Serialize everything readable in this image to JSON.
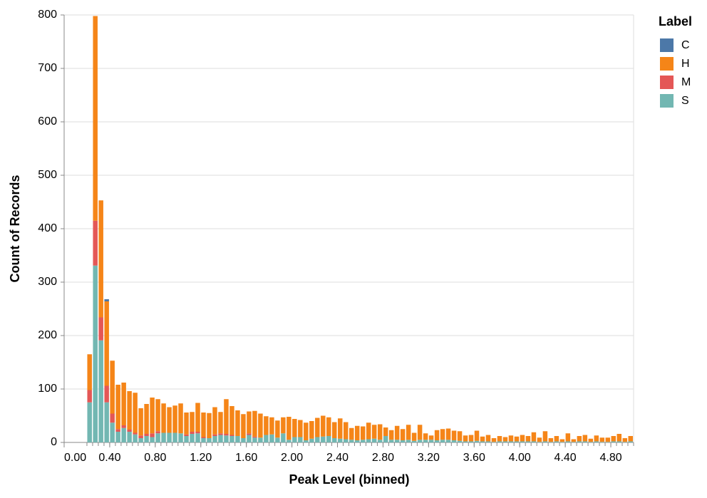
{
  "chart_data": {
    "type": "stacked-histogram",
    "x_label": "Peak Level (binned)",
    "y_label": "Count of Records",
    "legend_title": "Label",
    "bins": [
      0.2,
      0.25,
      0.3,
      0.35,
      0.4,
      0.45,
      0.5,
      0.55,
      0.6,
      0.65,
      0.7,
      0.75,
      0.8,
      0.85,
      0.9,
      0.95,
      1.0,
      1.05,
      1.1,
      1.15,
      1.2,
      1.25,
      1.3,
      1.35,
      1.4,
      1.45,
      1.5,
      1.55,
      1.6,
      1.65,
      1.7,
      1.75,
      1.8,
      1.85,
      1.9,
      1.95,
      2.0,
      2.05,
      2.1,
      2.15,
      2.2,
      2.25,
      2.3,
      2.35,
      2.4,
      2.45,
      2.5,
      2.55,
      2.6,
      2.65,
      2.7,
      2.75,
      2.8,
      2.85,
      2.9,
      2.95,
      3.0,
      3.05,
      3.1,
      3.15,
      3.2,
      3.25,
      3.3,
      3.35,
      3.4,
      3.45,
      3.5,
      3.55,
      3.6,
      3.65,
      3.7,
      3.75,
      3.8,
      3.85,
      3.9,
      3.95,
      4.0,
      4.05,
      4.1,
      4.15,
      4.2,
      4.25,
      4.3,
      4.35,
      4.4,
      4.45,
      4.5,
      4.55,
      4.6,
      4.65,
      4.7,
      4.75,
      4.8,
      4.85,
      4.9,
      4.95,
      5.0
    ],
    "series": [
      {
        "name": "C",
        "color": "#4c78a8",
        "values": [
          0,
          0,
          0,
          4,
          0,
          0,
          0,
          0,
          0,
          0,
          0,
          0,
          0,
          0,
          0,
          0,
          0,
          0,
          0,
          0,
          0,
          0,
          0,
          0,
          0,
          0,
          0,
          0,
          0,
          0,
          0,
          0,
          0,
          0,
          0,
          0,
          0,
          0,
          0,
          0,
          0,
          0,
          0,
          0,
          0,
          0,
          0,
          0,
          0,
          0,
          0,
          0,
          0,
          0,
          0,
          0,
          0,
          0,
          0,
          0,
          0,
          0,
          0,
          0,
          0,
          0,
          0,
          0,
          0,
          0,
          0,
          0,
          0,
          0,
          0,
          0,
          0,
          0,
          0,
          0,
          0,
          0,
          0,
          0,
          0,
          0,
          0,
          0,
          0,
          0,
          0,
          0,
          0,
          0,
          0,
          0
        ]
      },
      {
        "name": "H",
        "color": "#f58518",
        "values": [
          67,
          383,
          219,
          158,
          99,
          83,
          80,
          72,
          75,
          51,
          56,
          67,
          60,
          55,
          48,
          51,
          56,
          41,
          37,
          54,
          46,
          47,
          51,
          40,
          65,
          54,
          48,
          45,
          41,
          48,
          45,
          35,
          32,
          32,
          30,
          43,
          34,
          32,
          33,
          33,
          36,
          39,
          35,
          30,
          38,
          32,
          22,
          27,
          25,
          31,
          26,
          29,
          16,
          18,
          26,
          21,
          28,
          15,
          28,
          12,
          8,
          19,
          20,
          21,
          18,
          18,
          11,
          12,
          19,
          9,
          12,
          7,
          10,
          8,
          11,
          9,
          12,
          10,
          17,
          8,
          19,
          7,
          10,
          5,
          15,
          5,
          10,
          12,
          6,
          11,
          8,
          8,
          10,
          14,
          7,
          10
        ]
      },
      {
        "name": "M",
        "color": "#e45756",
        "values": [
          23,
          84,
          43,
          31,
          17,
          5,
          5,
          4,
          3,
          5,
          4,
          7,
          4,
          0,
          0,
          0,
          0,
          3,
          4,
          3,
          2,
          0,
          3,
          3,
          3,
          2,
          0,
          0,
          3,
          2,
          0,
          0,
          0,
          0,
          0,
          0,
          0,
          0,
          0,
          0,
          0,
          0,
          0,
          0,
          0,
          0,
          0,
          0,
          0,
          0,
          0,
          0,
          0,
          0,
          0,
          0,
          0,
          0,
          0,
          0,
          0,
          0,
          0,
          0,
          0,
          0,
          0,
          0,
          0,
          0,
          0,
          0,
          0,
          0,
          0,
          0,
          0,
          0,
          0,
          0,
          0,
          0,
          0,
          0,
          0,
          0,
          0,
          0,
          0,
          0,
          0,
          0,
          0,
          0,
          0,
          0
        ]
      },
      {
        "name": "S",
        "color": "#72b7b2",
        "values": [
          75,
          331,
          191,
          75,
          37,
          20,
          27,
          20,
          15,
          8,
          12,
          10,
          17,
          18,
          18,
          18,
          17,
          12,
          16,
          17,
          8,
          8,
          12,
          14,
          13,
          12,
          12,
          8,
          14,
          9,
          9,
          14,
          15,
          9,
          17,
          5,
          10,
          10,
          4,
          7,
          10,
          11,
          12,
          8,
          7,
          6,
          5,
          4,
          5,
          6,
          7,
          5,
          12,
          5,
          5,
          4,
          5,
          3,
          5,
          5,
          5,
          4,
          5,
          5,
          4,
          3,
          2,
          2,
          3,
          2,
          2,
          1,
          2,
          2,
          2,
          2,
          2,
          2,
          2,
          1,
          2,
          1,
          2,
          1,
          2,
          1,
          2,
          2,
          1,
          2,
          1,
          1,
          2,
          2,
          1,
          2
        ]
      }
    ],
    "xlim": [
      0,
      5
    ],
    "xticks": [
      {
        "value": 0,
        "label": "0.00"
      },
      {
        "value": 0.4,
        "label": "0.40"
      },
      {
        "value": 0.8,
        "label": "0.80"
      },
      {
        "value": 1.2,
        "label": "1.20"
      },
      {
        "value": 1.6,
        "label": "1.60"
      },
      {
        "value": 2.0,
        "label": "2.00"
      },
      {
        "value": 2.4,
        "label": "2.40"
      },
      {
        "value": 2.8,
        "label": "2.80"
      },
      {
        "value": 3.2,
        "label": "3.20"
      },
      {
        "value": 3.6,
        "label": "3.60"
      },
      {
        "value": 4.0,
        "label": "4.00"
      },
      {
        "value": 4.4,
        "label": "4.40"
      },
      {
        "value": 4.8,
        "label": "4.80"
      }
    ],
    "ylim": [
      0,
      800
    ],
    "yticks": [
      0,
      100,
      200,
      300,
      400,
      500,
      600,
      700,
      800
    ],
    "grid": true
  }
}
